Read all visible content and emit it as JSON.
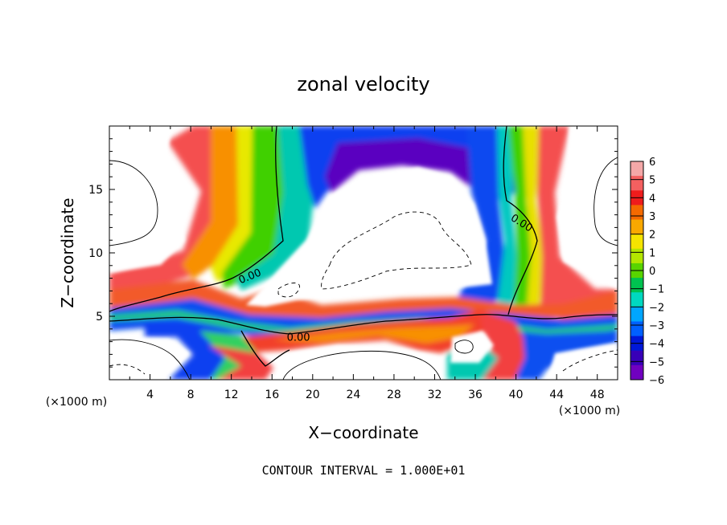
{
  "chart_data": {
    "type": "heatmap",
    "title": "zonal velocity",
    "xlabel": "X−coordinate",
    "ylabel": "Z−coordinate",
    "x_unit_left": "(×1000 m)",
    "x_unit_right": "(×1000 m)",
    "xlim": [
      0,
      50
    ],
    "ylim": [
      0,
      20
    ],
    "x_ticks": [
      4,
      8,
      12,
      16,
      20,
      24,
      28,
      32,
      36,
      40,
      44,
      48
    ],
    "y_ticks": [
      5,
      10,
      15
    ],
    "x_tick_labels": [
      "4",
      "8",
      "12",
      "16",
      "20",
      "24",
      "28",
      "32",
      "36",
      "40",
      "44",
      "48"
    ],
    "y_tick_labels": [
      "5",
      "10",
      "15"
    ],
    "colorbar": {
      "min": -6,
      "max": 6,
      "labels": [
        "6",
        "5",
        "4",
        "3",
        "2",
        "1",
        "0",
        "−1",
        "−2",
        "−3",
        "−4",
        "−5",
        "−6"
      ],
      "colors": [
        "#f4a8a8",
        "#f46060",
        "#ee1c1c",
        "#f46a00",
        "#f9a800",
        "#f5e400",
        "#b4e600",
        "#58d400",
        "#00c250",
        "#00d8c0",
        "#00a6ff",
        "#0060ff",
        "#0018d8",
        "#3800b8",
        "#7000c0"
      ]
    },
    "contour_labels": [
      {
        "text": "0.00",
        "x": 13.8,
        "y": 8.2,
        "angle": -22
      },
      {
        "text": "0.00",
        "x": 18.6,
        "y": 3.4,
        "angle": 0
      },
      {
        "text": "0.00",
        "x": 40.6,
        "y": 12.4,
        "angle": 32
      }
    ],
    "footnote": "CONTOUR INTERVAL = 1.000E+01"
  }
}
